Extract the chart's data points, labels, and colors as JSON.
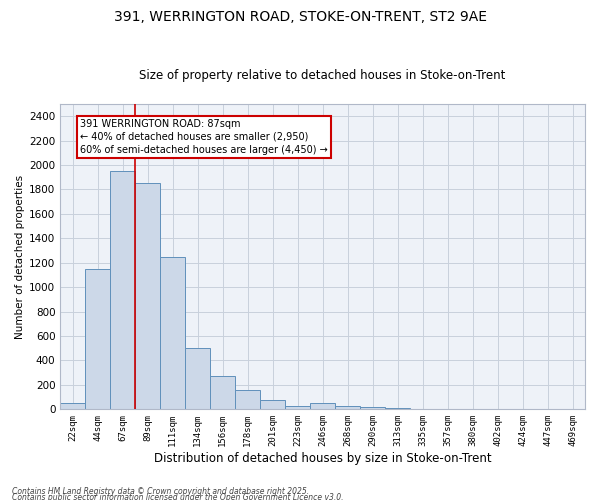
{
  "title_line1": "391, WERRINGTON ROAD, STOKE-ON-TRENT, ST2 9AE",
  "title_line2": "Size of property relative to detached houses in Stoke-on-Trent",
  "xlabel": "Distribution of detached houses by size in Stoke-on-Trent",
  "ylabel": "Number of detached properties",
  "categories": [
    "22sqm",
    "44sqm",
    "67sqm",
    "89sqm",
    "111sqm",
    "134sqm",
    "156sqm",
    "178sqm",
    "201sqm",
    "223sqm",
    "246sqm",
    "268sqm",
    "290sqm",
    "313sqm",
    "335sqm",
    "357sqm",
    "380sqm",
    "402sqm",
    "424sqm",
    "447sqm",
    "469sqm"
  ],
  "values": [
    50,
    1150,
    1950,
    1850,
    1250,
    500,
    270,
    160,
    75,
    30,
    50,
    30,
    20,
    10,
    5,
    5,
    5,
    2,
    2,
    2,
    2
  ],
  "bar_color": "#ccd8e8",
  "bar_edge_color": "#6090bb",
  "vline_index": 2.5,
  "vline_color": "#cc0000",
  "annotation_text": "391 WERRINGTON ROAD: 87sqm\n← 40% of detached houses are smaller (2,950)\n60% of semi-detached houses are larger (4,450) →",
  "annotation_box_facecolor": "#ffffff",
  "annotation_box_edgecolor": "#cc0000",
  "ylim": [
    0,
    2500
  ],
  "yticks": [
    0,
    200,
    400,
    600,
    800,
    1000,
    1200,
    1400,
    1600,
    1800,
    2000,
    2200,
    2400
  ],
  "grid_color": "#c8d0dc",
  "background_color": "#eef2f8",
  "footer_line1": "Contains HM Land Registry data © Crown copyright and database right 2025.",
  "footer_line2": "Contains public sector information licensed under the Open Government Licence v3.0."
}
